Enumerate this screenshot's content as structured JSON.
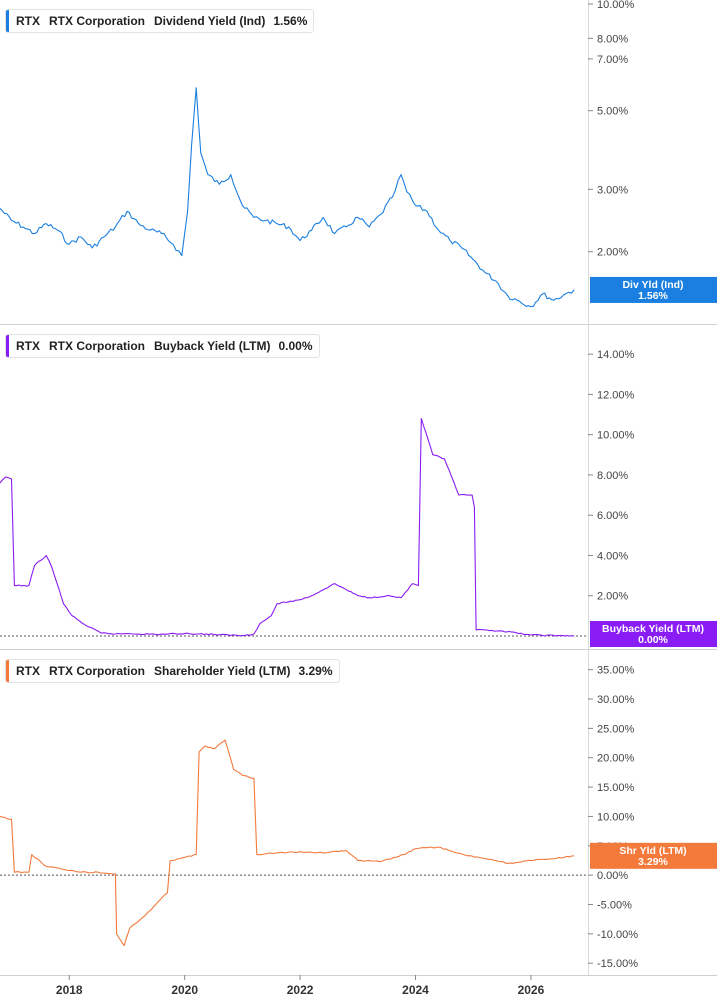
{
  "chart_data": [
    {
      "type": "line",
      "ticker": "RTX",
      "company": "RTX Corporation",
      "metric": "Dividend Yield (Ind)",
      "current_value": "1.56%",
      "badge_label": "Div Yld (Ind)",
      "badge_value": "1.56%",
      "color": "#1a7fe0",
      "y_scale": "log",
      "ylim": [
        1.3,
        10.0
      ],
      "y_ticks": [
        {
          "v": 10.0,
          "label": "10.00%"
        },
        {
          "v": 8.0,
          "label": "8.00%"
        },
        {
          "v": 7.0,
          "label": "7.00%"
        },
        {
          "v": 5.0,
          "label": "5.00%"
        },
        {
          "v": 3.0,
          "label": "3.00%"
        },
        {
          "v": 2.0,
          "label": "2.00%"
        }
      ],
      "x": [
        2016.8,
        2017.0,
        2017.2,
        2017.4,
        2017.6,
        2017.8,
        2018.0,
        2018.2,
        2018.4,
        2018.6,
        2018.8,
        2019.0,
        2019.2,
        2019.4,
        2019.6,
        2019.8,
        2019.95,
        2020.05,
        2020.12,
        2020.2,
        2020.28,
        2020.4,
        2020.6,
        2020.8,
        2021.0,
        2021.2,
        2021.4,
        2021.6,
        2021.8,
        2022.0,
        2022.2,
        2022.4,
        2022.6,
        2022.8,
        2023.0,
        2023.2,
        2023.4,
        2023.6,
        2023.75,
        2023.85,
        2024.0,
        2024.2,
        2024.4,
        2024.6,
        2024.8,
        2025.0,
        2025.2,
        2025.4,
        2025.6,
        2025.8,
        2026.0,
        2026.2,
        2026.4,
        2026.6,
        2026.75
      ],
      "values": [
        2.65,
        2.45,
        2.35,
        2.25,
        2.4,
        2.3,
        2.1,
        2.2,
        2.05,
        2.2,
        2.35,
        2.6,
        2.4,
        2.3,
        2.25,
        2.1,
        1.95,
        2.6,
        4.0,
        5.8,
        3.8,
        3.3,
        3.1,
        3.3,
        2.7,
        2.5,
        2.45,
        2.4,
        2.35,
        2.15,
        2.3,
        2.5,
        2.25,
        2.35,
        2.5,
        2.35,
        2.55,
        2.85,
        3.3,
        2.95,
        2.7,
        2.6,
        2.3,
        2.15,
        2.05,
        1.9,
        1.75,
        1.65,
        1.5,
        1.45,
        1.4,
        1.52,
        1.46,
        1.52,
        1.56
      ]
    },
    {
      "type": "line",
      "ticker": "RTX",
      "company": "RTX Corporation",
      "metric": "Buyback Yield (LTM)",
      "current_value": "0.00%",
      "badge_label": "Buyback Yield (LTM)",
      "badge_value": "0.00%",
      "color": "#8a1cf5",
      "ylim": [
        -0.2,
        15.2
      ],
      "y_ticks": [
        {
          "v": 14,
          "label": "14.00%"
        },
        {
          "v": 12,
          "label": "12.00%"
        },
        {
          "v": 10,
          "label": "10.00%"
        },
        {
          "v": 8,
          "label": "8.00%"
        },
        {
          "v": 6,
          "label": "6.00%"
        },
        {
          "v": 4,
          "label": "4.00%"
        },
        {
          "v": 2,
          "label": "2.00%"
        }
      ],
      "x": [
        2016.8,
        2016.9,
        2017.0,
        2017.05,
        2017.3,
        2017.4,
        2017.6,
        2017.7,
        2017.9,
        2018.05,
        2018.3,
        2018.55,
        2018.8,
        2019.0,
        2019.5,
        2020.0,
        2020.5,
        2021.0,
        2021.2,
        2021.3,
        2021.5,
        2021.6,
        2021.8,
        2022.0,
        2022.2,
        2022.4,
        2022.6,
        2022.8,
        2023.0,
        2023.2,
        2023.5,
        2023.75,
        2023.95,
        2024.05,
        2024.1,
        2024.3,
        2024.5,
        2024.75,
        2024.98,
        2025.02,
        2025.05,
        2025.5,
        2026.0,
        2026.5,
        2026.75
      ],
      "values": [
        7.6,
        7.9,
        7.8,
        2.5,
        2.5,
        3.5,
        4.0,
        3.4,
        1.6,
        1.0,
        0.5,
        0.15,
        0.1,
        0.12,
        0.08,
        0.12,
        0.08,
        0.02,
        0.1,
        0.6,
        1.0,
        1.6,
        1.7,
        1.8,
        2.0,
        2.3,
        2.6,
        2.3,
        2.0,
        1.9,
        2.0,
        1.9,
        2.6,
        2.5,
        10.8,
        9.0,
        8.8,
        7.0,
        7.0,
        6.4,
        0.3,
        0.25,
        0.05,
        0.02,
        0.0
      ]
    },
    {
      "type": "line",
      "ticker": "RTX",
      "company": "RTX Corporation",
      "metric": "Shareholder Yield (LTM)",
      "current_value": "3.29%",
      "badge_label": "Shr Yld (LTM)",
      "badge_value": "3.29%",
      "color": "#f47a3c",
      "ylim": [
        -16.5,
        37.5
      ],
      "y_ticks": [
        {
          "v": 35,
          "label": "35.00%"
        },
        {
          "v": 30,
          "label": "30.00%"
        },
        {
          "v": 25,
          "label": "25.00%"
        },
        {
          "v": 20,
          "label": "20.00%"
        },
        {
          "v": 15,
          "label": "15.00%"
        },
        {
          "v": 10,
          "label": "10.00%"
        },
        {
          "v": 5,
          "label": "5.00%"
        },
        {
          "v": 0,
          "label": "0.00%"
        },
        {
          "v": -5,
          "label": "-5.00%"
        },
        {
          "v": -10,
          "label": "-10.00%"
        },
        {
          "v": -15,
          "label": "-15.00%"
        }
      ],
      "x": [
        2016.8,
        2017.0,
        2017.05,
        2017.3,
        2017.35,
        2017.6,
        2017.9,
        2018.2,
        2018.5,
        2018.8,
        2018.82,
        2018.95,
        2019.05,
        2019.3,
        2019.5,
        2019.7,
        2019.75,
        2020.0,
        2020.2,
        2020.25,
        2020.35,
        2020.5,
        2020.7,
        2020.85,
        2021.0,
        2021.2,
        2021.25,
        2021.6,
        2022.0,
        2022.4,
        2022.8,
        2023.0,
        2023.4,
        2023.8,
        2024.0,
        2024.4,
        2024.7,
        2024.9,
        2025.1,
        2025.4,
        2025.6,
        2026.0,
        2026.4,
        2026.75
      ],
      "values": [
        10.0,
        9.5,
        0.5,
        0.5,
        3.5,
        1.5,
        1.0,
        0.5,
        0.5,
        0.2,
        -10.0,
        -12.0,
        -9.0,
        -7.0,
        -5.0,
        -3.0,
        2.5,
        3.0,
        3.5,
        21.0,
        22.0,
        21.5,
        23.0,
        18.0,
        17.0,
        16.5,
        3.5,
        3.8,
        4.0,
        3.8,
        4.2,
        2.5,
        2.3,
        3.5,
        4.5,
        4.8,
        3.8,
        3.3,
        3.0,
        2.5,
        2.0,
        2.5,
        2.8,
        3.29
      ]
    }
  ],
  "x_axis": {
    "xlim": [
      2016.8,
      2026.85
    ],
    "ticks": [
      {
        "v": 2018,
        "label": "2018"
      },
      {
        "v": 2020,
        "label": "2020"
      },
      {
        "v": 2022,
        "label": "2022"
      },
      {
        "v": 2024,
        "label": "2024"
      },
      {
        "v": 2026,
        "label": "2026"
      }
    ]
  }
}
